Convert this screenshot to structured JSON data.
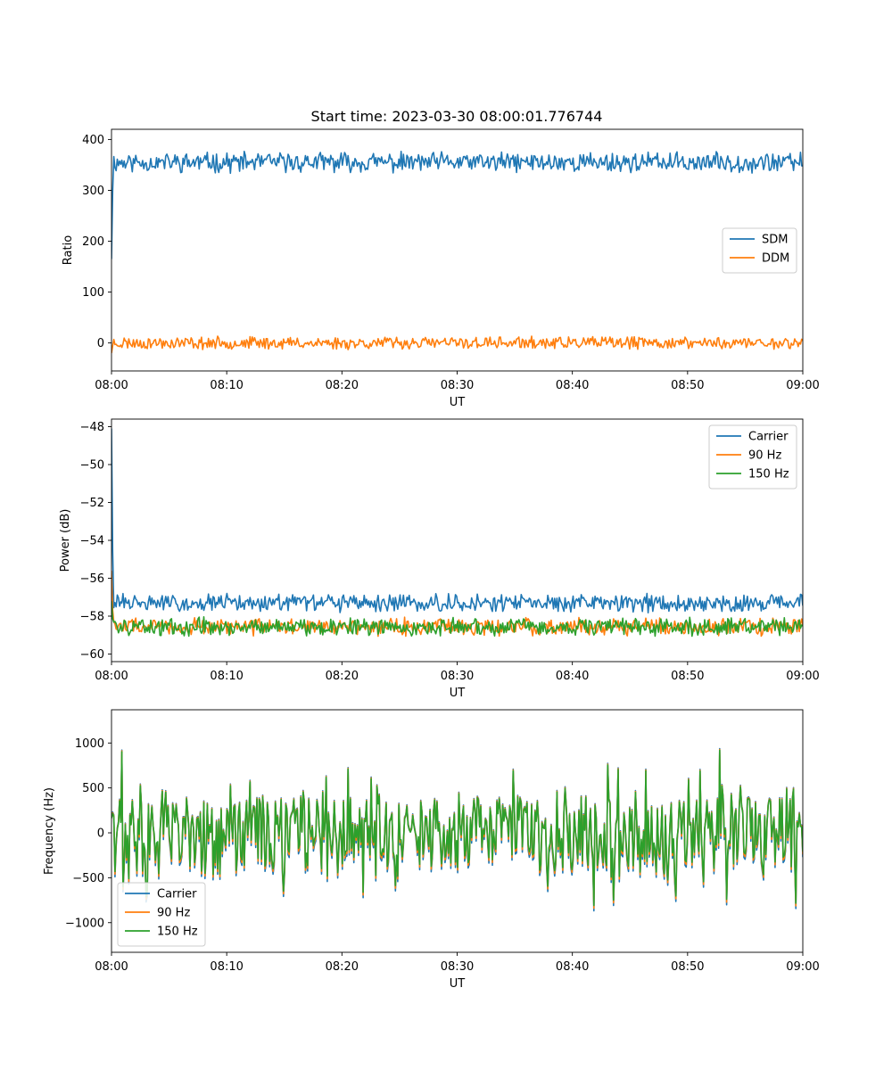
{
  "figure_title": "Start time: 2023-03-30 08:00:01.776744",
  "chart_data": [
    {
      "type": "line",
      "title": "Start time: 2023-03-30 08:00:01.776744",
      "xlabel": "UT",
      "ylabel": "Ratio",
      "xlim": [
        0,
        60
      ],
      "ylim": [
        -55,
        420
      ],
      "x_ticks": [
        0,
        10,
        20,
        30,
        40,
        50,
        60
      ],
      "x_tick_labels": [
        "08:00",
        "08:10",
        "08:20",
        "08:30",
        "08:40",
        "08:50",
        "09:00"
      ],
      "y_ticks": [
        0,
        100,
        200,
        300,
        400
      ],
      "y_tick_labels": [
        "0",
        "100",
        "200",
        "300",
        "400"
      ],
      "grid": false,
      "legend": "center-right",
      "series": [
        {
          "name": "SDM",
          "color": "#1f77b4",
          "mean": 355,
          "amplitude": 16,
          "start_value": 165,
          "seed": 11
        },
        {
          "name": "DDM",
          "color": "#ff7f0e",
          "mean": 0,
          "amplitude": 10,
          "start_value": -20,
          "seed": 23
        }
      ]
    },
    {
      "type": "line",
      "xlabel": "UT",
      "ylabel": "Power (dB)",
      "xlim": [
        0,
        60
      ],
      "ylim": [
        -60.4,
        -47.6
      ],
      "x_ticks": [
        0,
        10,
        20,
        30,
        40,
        50,
        60
      ],
      "x_tick_labels": [
        "08:00",
        "08:10",
        "08:20",
        "08:30",
        "08:40",
        "08:50",
        "09:00"
      ],
      "y_ticks": [
        -60,
        -58,
        -56,
        -54,
        -52,
        -50,
        -48
      ],
      "y_tick_labels": [
        "−60",
        "−58",
        "−56",
        "−54",
        "−52",
        "−50",
        "−48"
      ],
      "grid": false,
      "legend": "top-right",
      "series": [
        {
          "name": "Carrier",
          "color": "#1f77b4",
          "mean": -57.3,
          "amplitude": 0.38,
          "start_value": -48.1,
          "seed": 31
        },
        {
          "name": "90 Hz",
          "color": "#ff7f0e",
          "mean": -58.55,
          "amplitude": 0.38,
          "start_value": -55.6,
          "seed": 47
        },
        {
          "name": "150 Hz",
          "color": "#2ca02c",
          "mean": -58.55,
          "amplitude": 0.38,
          "start_value": -57.2,
          "seed": 59
        }
      ]
    },
    {
      "type": "line",
      "xlabel": "UT",
      "ylabel": "Frequency (Hz)",
      "xlim": [
        0,
        60
      ],
      "ylim": [
        -1330,
        1370
      ],
      "x_ticks": [
        0,
        10,
        20,
        30,
        40,
        50,
        60
      ],
      "x_tick_labels": [
        "08:00",
        "08:10",
        "08:20",
        "08:30",
        "08:40",
        "08:50",
        "09:00"
      ],
      "y_ticks": [
        -1000,
        -500,
        0,
        500,
        1000
      ],
      "y_tick_labels": [
        "−1000",
        "−500",
        "0",
        "500",
        "1000"
      ],
      "grid": false,
      "legend": "lower-left",
      "series": [
        {
          "name": "Carrier",
          "color": "#1f77b4",
          "offset": -60,
          "seed": 71
        },
        {
          "name": "90 Hz",
          "color": "#ff7f0e",
          "offset": -30,
          "seed": 71
        },
        {
          "name": "150 Hz",
          "color": "#2ca02c",
          "offset": 0,
          "seed": 71
        }
      ]
    }
  ]
}
